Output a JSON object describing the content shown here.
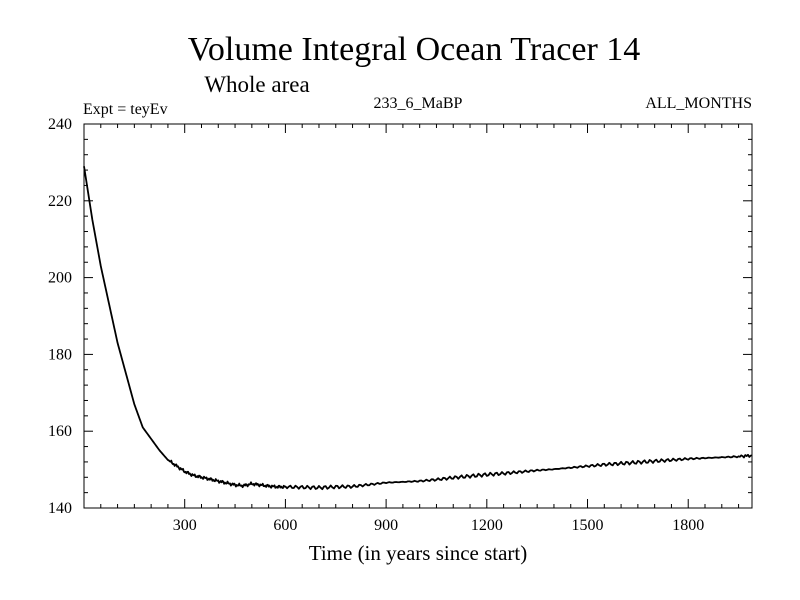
{
  "chart_data": {
    "type": "line",
    "title": "Volume Integral Ocean Tracer 14",
    "subtitle": "Whole area",
    "expt_label": "Expt = teyEv",
    "run_label": "233_6_MaBP",
    "period_label": "ALL_MONTHS",
    "xlabel": "Time (in years since start)",
    "ylabel": "",
    "xlim": [
      0,
      1990
    ],
    "ylim": [
      140,
      240
    ],
    "xticks": [
      300,
      600,
      900,
      1200,
      1500,
      1800
    ],
    "yticks": [
      140,
      160,
      180,
      200,
      220,
      240
    ],
    "grid": false,
    "series": [
      {
        "name": "Volume Integral Ocean Tracer 14",
        "color": "#000000",
        "x": [
          0,
          25,
          50,
          75,
          100,
          125,
          150,
          175,
          200,
          225,
          250,
          275,
          300,
          325,
          350,
          375,
          400,
          425,
          450,
          475,
          500,
          525,
          550,
          575,
          600,
          650,
          700,
          750,
          800,
          850,
          900,
          950,
          1000,
          1050,
          1100,
          1150,
          1200,
          1250,
          1300,
          1350,
          1400,
          1450,
          1500,
          1550,
          1600,
          1650,
          1700,
          1750,
          1800,
          1850,
          1900,
          1950,
          1990
        ],
        "y": [
          229,
          215,
          203,
          193,
          183,
          175,
          167,
          161,
          158,
          155,
          152.5,
          151,
          149.5,
          148.5,
          148,
          147.5,
          147,
          146.5,
          146,
          145.8,
          146.3,
          146,
          145.7,
          145.5,
          145.5,
          145.4,
          145.3,
          145.5,
          145.6,
          146.1,
          146.6,
          146.8,
          147,
          147.4,
          147.9,
          148.3,
          148.7,
          149,
          149.4,
          149.8,
          150.1,
          150.5,
          150.9,
          151.3,
          151.6,
          151.9,
          152.2,
          152.5,
          152.8,
          153,
          153.2,
          153.4,
          153.7
        ]
      }
    ]
  }
}
